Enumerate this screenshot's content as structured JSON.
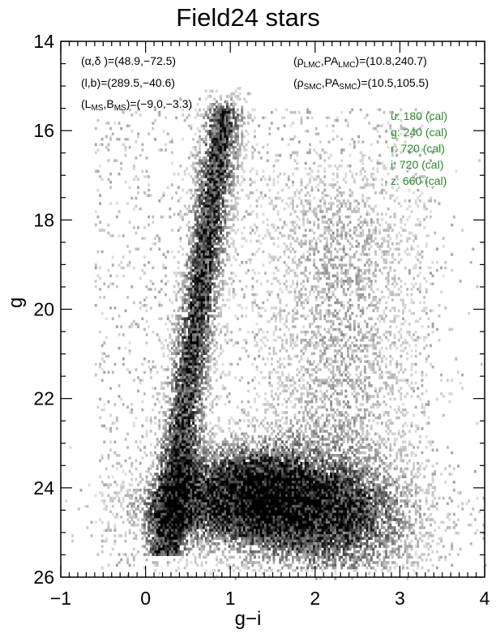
{
  "chart_data": {
    "type": "heatmap",
    "title": "Field24 stars",
    "xlabel": "g−i",
    "ylabel": "g",
    "xlim": [
      -1,
      4
    ],
    "ylim": [
      26,
      14
    ],
    "y_inverted": true,
    "xticks": [
      "−1",
      "0",
      "1",
      "2",
      "3",
      "4"
    ],
    "xtick_values": [
      -1,
      0,
      1,
      2,
      3,
      4
    ],
    "yticks": [
      "14",
      "16",
      "18",
      "20",
      "22",
      "24",
      "26"
    ],
    "ytick_values": [
      14,
      16,
      18,
      20,
      22,
      24,
      26
    ],
    "colormap": "grayscale (white = low density, black = high density)"
  },
  "annotations": {
    "radec_label": "(α,δ )",
    "radec_value": "=(48.9,−72.5)",
    "lb_label": "(l,b)",
    "lb_value": "=(289.5,−40.6)",
    "ms_L": "L",
    "ms_B": "B",
    "ms_sub": "MS",
    "ms_value": "=(−9.0,−3.3)",
    "rho": "ρ",
    "pa": "PA",
    "lmc_sub": "LMC",
    "smc_sub": "SMC",
    "lmc_value": "=(10.8,240.7)",
    "smc_value": "=(10.5,105.5)",
    "exposures": [
      "u: 180 (cal)",
      "g: 240 (cal)",
      "r: 720 (cal)",
      "i: 720 (cal)",
      "z: 660 (cal)"
    ]
  }
}
